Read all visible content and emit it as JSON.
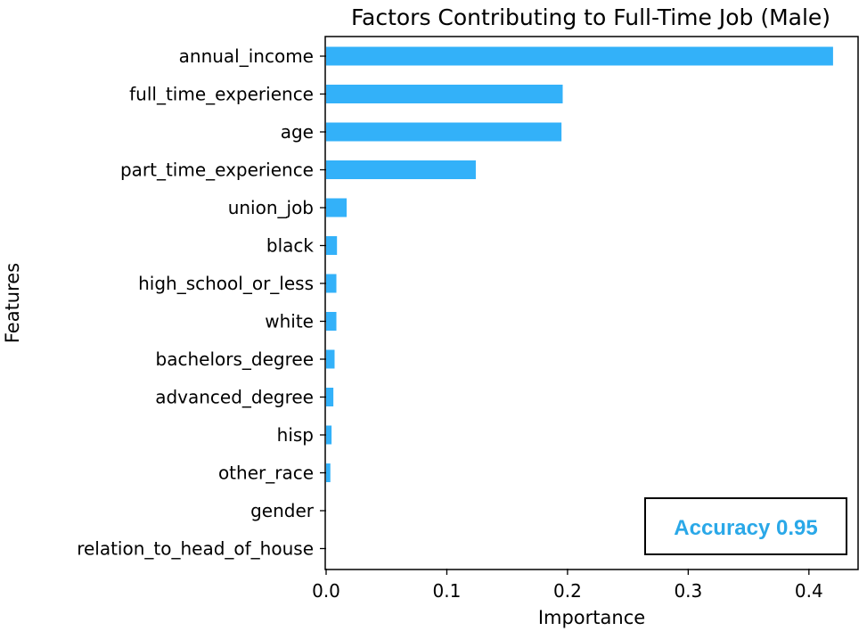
{
  "chart_data": {
    "type": "bar",
    "orientation": "horizontal",
    "title": "Factors Contributing to Full-Time Job (Male)",
    "xlabel": "Importance",
    "ylabel": "Features",
    "xlim": [
      0,
      0.44
    ],
    "xticks": [
      "0.0",
      "0.1",
      "0.2",
      "0.3",
      "0.4"
    ],
    "xtick_values": [
      0,
      0.1,
      0.2,
      0.3,
      0.4
    ],
    "categories": [
      "annual_income",
      "full_time_experience",
      "age",
      "part_time_experience",
      "union_job",
      "black",
      "high_school_or_less",
      "white",
      "bachelors_degree",
      "advanced_degree",
      "hisp",
      "other_race",
      "gender",
      "relation_to_head_of_house"
    ],
    "values": [
      0.42,
      0.196,
      0.195,
      0.124,
      0.017,
      0.009,
      0.0085,
      0.0085,
      0.007,
      0.006,
      0.0045,
      0.0035,
      0.0,
      0.0
    ],
    "bar_color": "#33b1f9",
    "grid": false,
    "annotation": {
      "text": "Accuracy 0.95",
      "color": "#2aa8e8",
      "placement": "bottom-right"
    }
  }
}
